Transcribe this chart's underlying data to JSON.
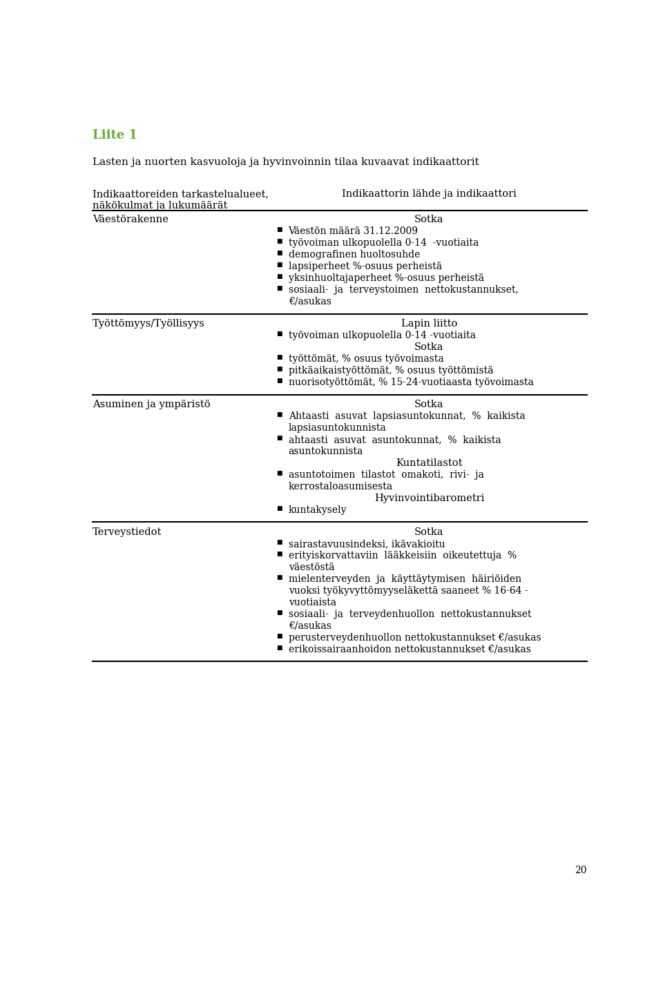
{
  "page_title": "Liite 1",
  "title_color": "#6aaa3a",
  "main_title": "Lasten ja nuorten kasvuoloja ja hyvinvoinnin tilaa kuvaavat indikaattorit",
  "col1_header_line1": "Indikaattoreiden tarkastelualueet,",
  "col1_header_line2": "näkökulmat ja lukumäärät",
  "col2_header": "Indikaattorin lähde ja indikaattori",
  "page_number": "20",
  "sections": [
    {
      "category": "Väestörakenne",
      "right_col": [
        {
          "type": "center",
          "text": "Sotka"
        },
        {
          "type": "bullet",
          "text": "Väestön määrä 31.12.2009"
        },
        {
          "type": "bullet",
          "text": "työvoiman ulkopuolella 0-14  -vuotiaita"
        },
        {
          "type": "bullet",
          "text": "demografinen huoltosuhde"
        },
        {
          "type": "bullet",
          "text": "lapsiperheet %-osuus perheistä"
        },
        {
          "type": "bullet",
          "text": "yksinhuoltajaperheet %-osuus perheistä"
        },
        {
          "type": "bullet",
          "text": "sosiaali-  ja  terveystoimen  nettokustannukset,"
        },
        {
          "type": "continuation",
          "text": "€/asukas"
        }
      ]
    },
    {
      "category": "Työttömyys/Työllisyys",
      "right_col": [
        {
          "type": "center",
          "text": "Lapin liitto"
        },
        {
          "type": "bullet",
          "text": "työvoiman ulkopuolella 0-14 -vuotiaita"
        },
        {
          "type": "center",
          "text": "Sotka"
        },
        {
          "type": "bullet",
          "text": "työttömät, % osuus työvoimasta"
        },
        {
          "type": "bullet",
          "text": "pitkäaikaistyöttömät, % osuus työttömistä"
        },
        {
          "type": "bullet",
          "text": "nuorisotyöttömät, % 15-24-vuotiaasta työvoimasta"
        }
      ]
    },
    {
      "category": "Asuminen ja ympäristö",
      "right_col": [
        {
          "type": "center",
          "text": "Sotka"
        },
        {
          "type": "bullet",
          "text": "Ahtaasti  asuvat  lapsiasuntokunnat,  %  kaikista"
        },
        {
          "type": "continuation",
          "text": "lapsiasuntokunnista"
        },
        {
          "type": "bullet",
          "text": "ahtaasti  asuvat  asuntokunnat,  %  kaikista"
        },
        {
          "type": "continuation",
          "text": "asuntokunnista"
        },
        {
          "type": "center",
          "text": "Kuntatilastot"
        },
        {
          "type": "bullet",
          "text": "asuntotoimen  tilastot  omakoti,  rivi-  ja"
        },
        {
          "type": "continuation",
          "text": "kerrostaloasumisesta"
        },
        {
          "type": "center",
          "text": "Hyvinvointibarometri"
        },
        {
          "type": "bullet",
          "text": "kuntakysely"
        }
      ]
    },
    {
      "category": "Terveystiedot",
      "right_col": [
        {
          "type": "center",
          "text": "Sotka"
        },
        {
          "type": "bullet",
          "text": "sairastavuusindeksi, ikävakioitu"
        },
        {
          "type": "bullet",
          "text": "erityiskorvattaviin  lääkkeisiin  oikeutettuja  %"
        },
        {
          "type": "continuation",
          "text": "väestöstä"
        },
        {
          "type": "bullet",
          "text": "mielenterveyden  ja  käyttäytymisen  häiriöiden"
        },
        {
          "type": "continuation",
          "text": "vuoksi työkyvyttömyyseläkettä saaneet % 16-64 -"
        },
        {
          "type": "continuation",
          "text": "vuotiaista"
        },
        {
          "type": "bullet",
          "text": "sosiaali-  ja  terveydenhuollon  nettokustannukset"
        },
        {
          "type": "continuation",
          "text": "€/asukas"
        },
        {
          "type": "bullet",
          "text": "perusterveydenhuollon nettokustannukset €/asukas"
        },
        {
          "type": "bullet",
          "text": "erikoissairaanhoidon nettokustannukset €/asukas"
        }
      ]
    }
  ]
}
